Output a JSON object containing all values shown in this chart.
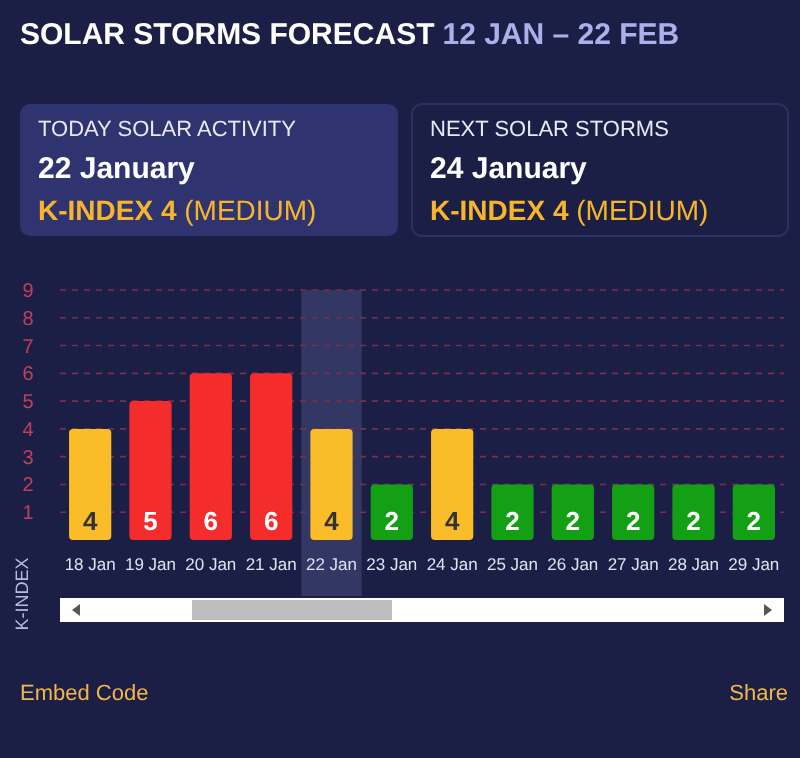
{
  "chart_data": {
    "type": "bar",
    "title": "SOLAR STORMS FORECAST",
    "subtitle": "12 JAN – 22 FEB",
    "ylabel": "K-INDEX",
    "categories": [
      "18 Jan",
      "19 Jan",
      "20 Jan",
      "21 Jan",
      "22 Jan",
      "23 Jan",
      "24 Jan",
      "25 Jan",
      "26 Jan",
      "27 Jan",
      "28 Jan",
      "29 Jan"
    ],
    "values": [
      4,
      5,
      6,
      6,
      4,
      2,
      4,
      2,
      2,
      2,
      2,
      2
    ],
    "colors": [
      "#fbbc2a",
      "#f42c2c",
      "#f42c2c",
      "#f42c2c",
      "#fbbc2a",
      "#14a014",
      "#fbbc2a",
      "#14a014",
      "#14a014",
      "#14a014",
      "#14a014",
      "#14a014"
    ],
    "data_labels": true,
    "ylim": [
      0,
      9
    ],
    "yticks": [
      1,
      2,
      3,
      4,
      5,
      6,
      7,
      8,
      9
    ],
    "grid": "y",
    "bands": [
      {
        "axis": "x",
        "from": "22 Jan",
        "to": "22 Jan",
        "color": "#3a3d6a"
      }
    ],
    "annotations": [
      "TODAY SOLAR ACTIVITY",
      "22 January",
      "K-INDEX 4 (MEDIUM)",
      "NEXT SOLAR STORMS",
      "24 January",
      "K-INDEX 4 (MEDIUM)",
      "Embed Code",
      "Share"
    ]
  }
}
